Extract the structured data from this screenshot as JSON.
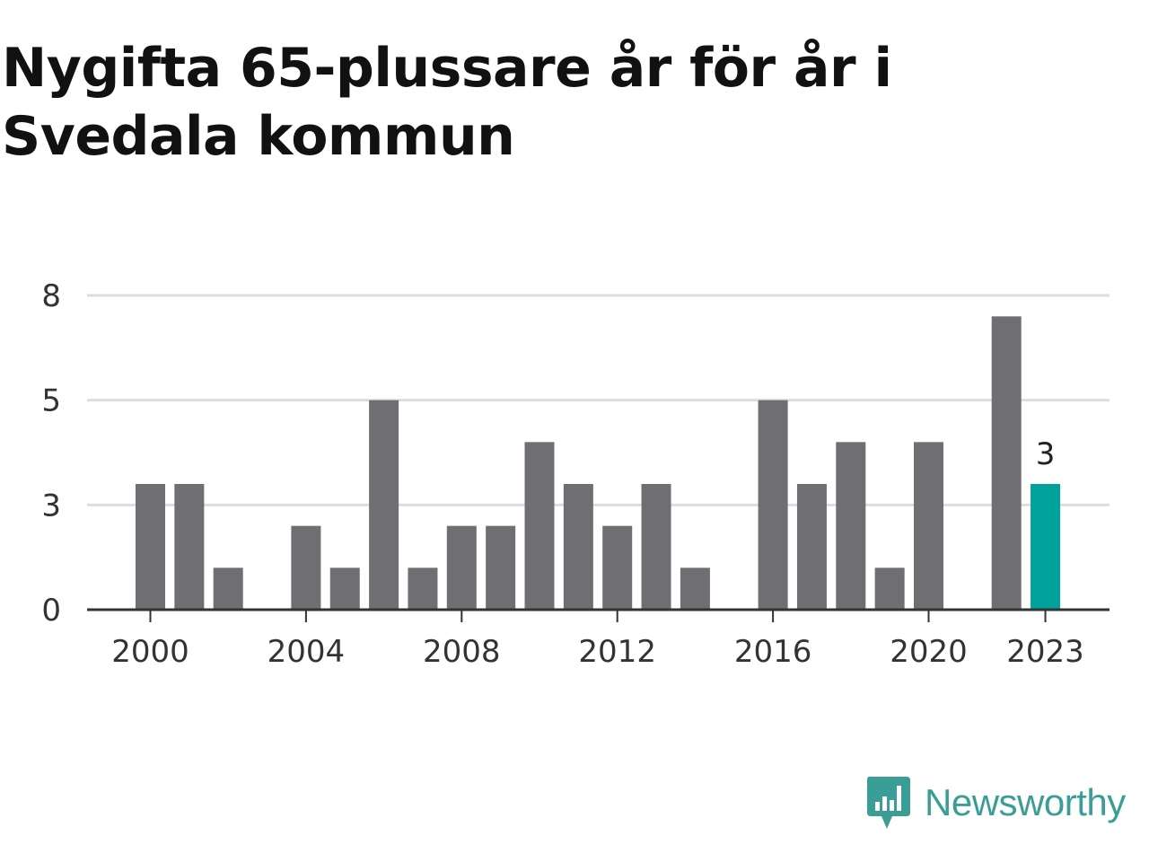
{
  "title": "Nygifta 65-plussare år för år i Svedala kommun",
  "brand": "Newsworthy",
  "colors": {
    "bar": "#6f6e73",
    "highlight": "#00a39c",
    "grid": "#dddddd",
    "axis": "#333333",
    "brand": "#3a9e97"
  },
  "chart_data": {
    "type": "bar",
    "title": "Nygifta 65-plussare år för år i Svedala kommun",
    "xlabel": "",
    "ylabel": "",
    "x": [
      2000,
      2001,
      2002,
      2003,
      2004,
      2005,
      2006,
      2007,
      2008,
      2009,
      2010,
      2011,
      2012,
      2013,
      2014,
      2015,
      2016,
      2017,
      2018,
      2019,
      2020,
      2021,
      2022,
      2023
    ],
    "values": [
      3,
      3,
      1,
      0,
      2,
      1,
      5,
      1,
      2,
      2,
      4,
      3,
      2,
      3,
      1,
      0,
      5,
      3,
      4,
      1,
      4,
      0,
      7,
      3
    ],
    "ylim": [
      0,
      8
    ],
    "yticks": [
      "0",
      "3",
      "5",
      "8"
    ],
    "ytick_values": [
      0,
      2.5,
      5,
      7.5
    ],
    "xticks": [
      "2000",
      "2004",
      "2008",
      "2012",
      "2016",
      "2020",
      "2023"
    ],
    "highlight": {
      "x": 2023,
      "label": "3"
    },
    "grid": true,
    "legend": "none"
  }
}
